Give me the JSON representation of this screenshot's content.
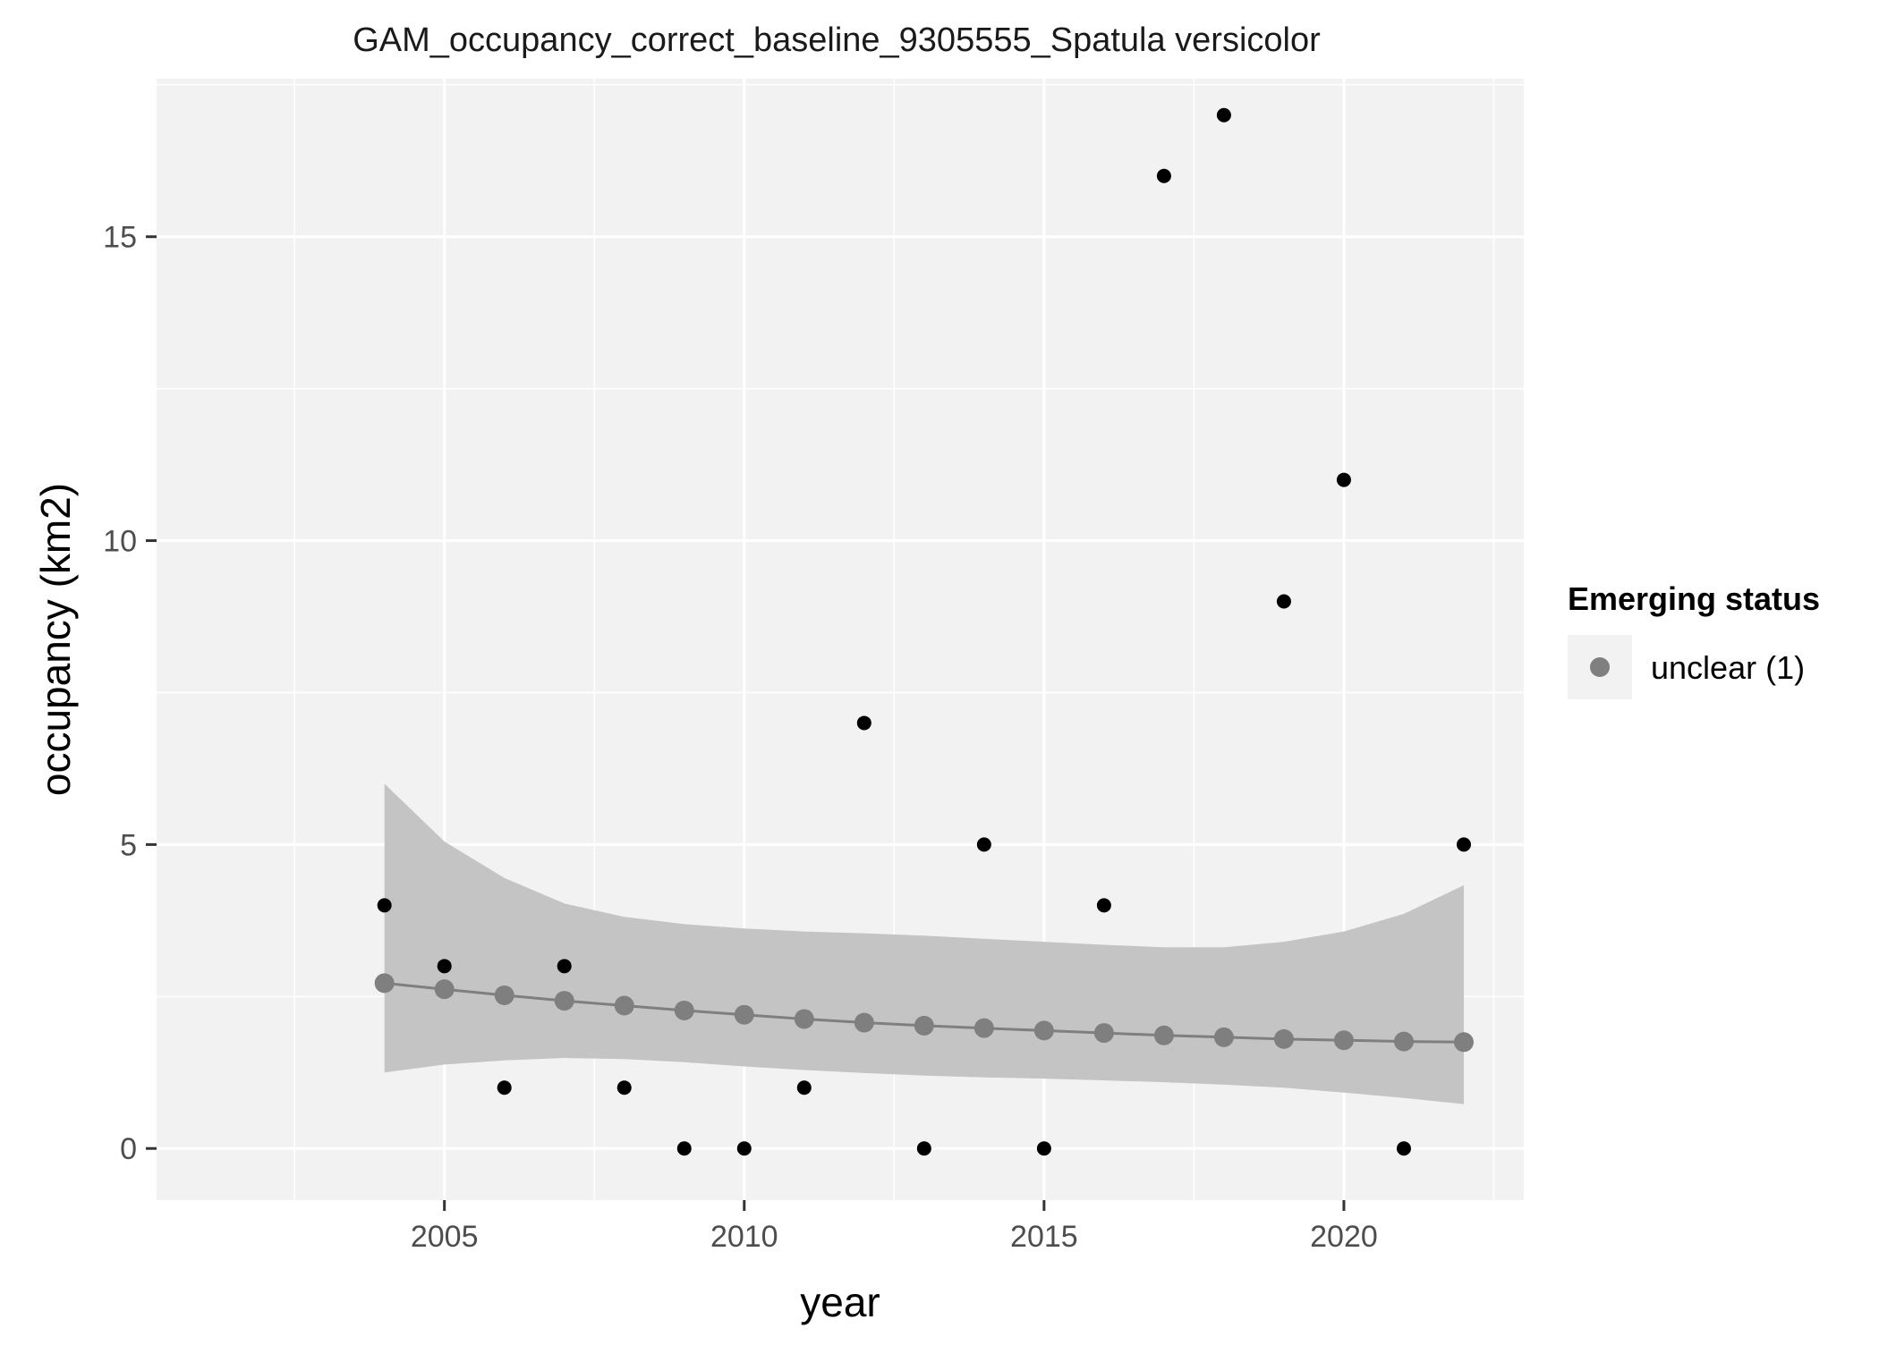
{
  "chart_data": {
    "type": "scatter",
    "title": "GAM_occupancy_correct_baseline_9305555_Spatula versicolor",
    "xlabel": "year",
    "ylabel": "occupancy (km2)",
    "xlim": [
      2000.2,
      2023.0
    ],
    "ylim": [
      -0.85,
      17.6
    ],
    "x_ticks": [
      2005,
      2010,
      2015,
      2020
    ],
    "y_ticks": [
      0,
      5,
      10,
      15
    ],
    "x_tick_labels": [
      "2005",
      "2010",
      "2015",
      "2020"
    ],
    "y_tick_labels": [
      "0",
      "5",
      "10",
      "15"
    ],
    "grid": true,
    "observed": {
      "x": [
        2004,
        2005,
        2006,
        2007,
        2008,
        2009,
        2010,
        2011,
        2012,
        2013,
        2014,
        2015,
        2016,
        2017,
        2018,
        2019,
        2020,
        2021,
        2022
      ],
      "y": [
        4,
        3,
        1,
        3,
        1,
        0,
        0,
        1,
        7,
        0,
        5,
        0,
        4,
        16,
        17,
        9,
        11,
        0,
        5
      ]
    },
    "fitted": {
      "x": [
        2004,
        2005,
        2006,
        2007,
        2008,
        2009,
        2010,
        2011,
        2012,
        2013,
        2014,
        2015,
        2016,
        2017,
        2018,
        2019,
        2020,
        2021,
        2022
      ],
      "y": [
        2.72,
        2.62,
        2.52,
        2.43,
        2.35,
        2.27,
        2.2,
        2.13,
        2.07,
        2.02,
        1.98,
        1.94,
        1.9,
        1.86,
        1.83,
        1.8,
        1.78,
        1.76,
        1.75
      ],
      "lower": [
        1.25,
        1.38,
        1.45,
        1.49,
        1.47,
        1.42,
        1.35,
        1.29,
        1.24,
        1.2,
        1.17,
        1.15,
        1.12,
        1.09,
        1.05,
        1.0,
        0.92,
        0.83,
        0.73
      ],
      "upper": [
        6.0,
        5.05,
        4.45,
        4.03,
        3.81,
        3.69,
        3.62,
        3.57,
        3.54,
        3.5,
        3.45,
        3.4,
        3.35,
        3.31,
        3.31,
        3.4,
        3.57,
        3.86,
        4.33
      ]
    },
    "legend": {
      "title": "Emerging status",
      "entries": [
        {
          "label": "unclear (1)",
          "color": "#7f7f7f"
        }
      ],
      "placement": "right"
    },
    "colors": {
      "panel": "#f2f2f2",
      "grid": "#ffffff",
      "ribbon": "#c4c4c4",
      "line": "#7f7f7f",
      "fitted_points": "#7f7f7f",
      "observed_points": "#000000"
    }
  }
}
